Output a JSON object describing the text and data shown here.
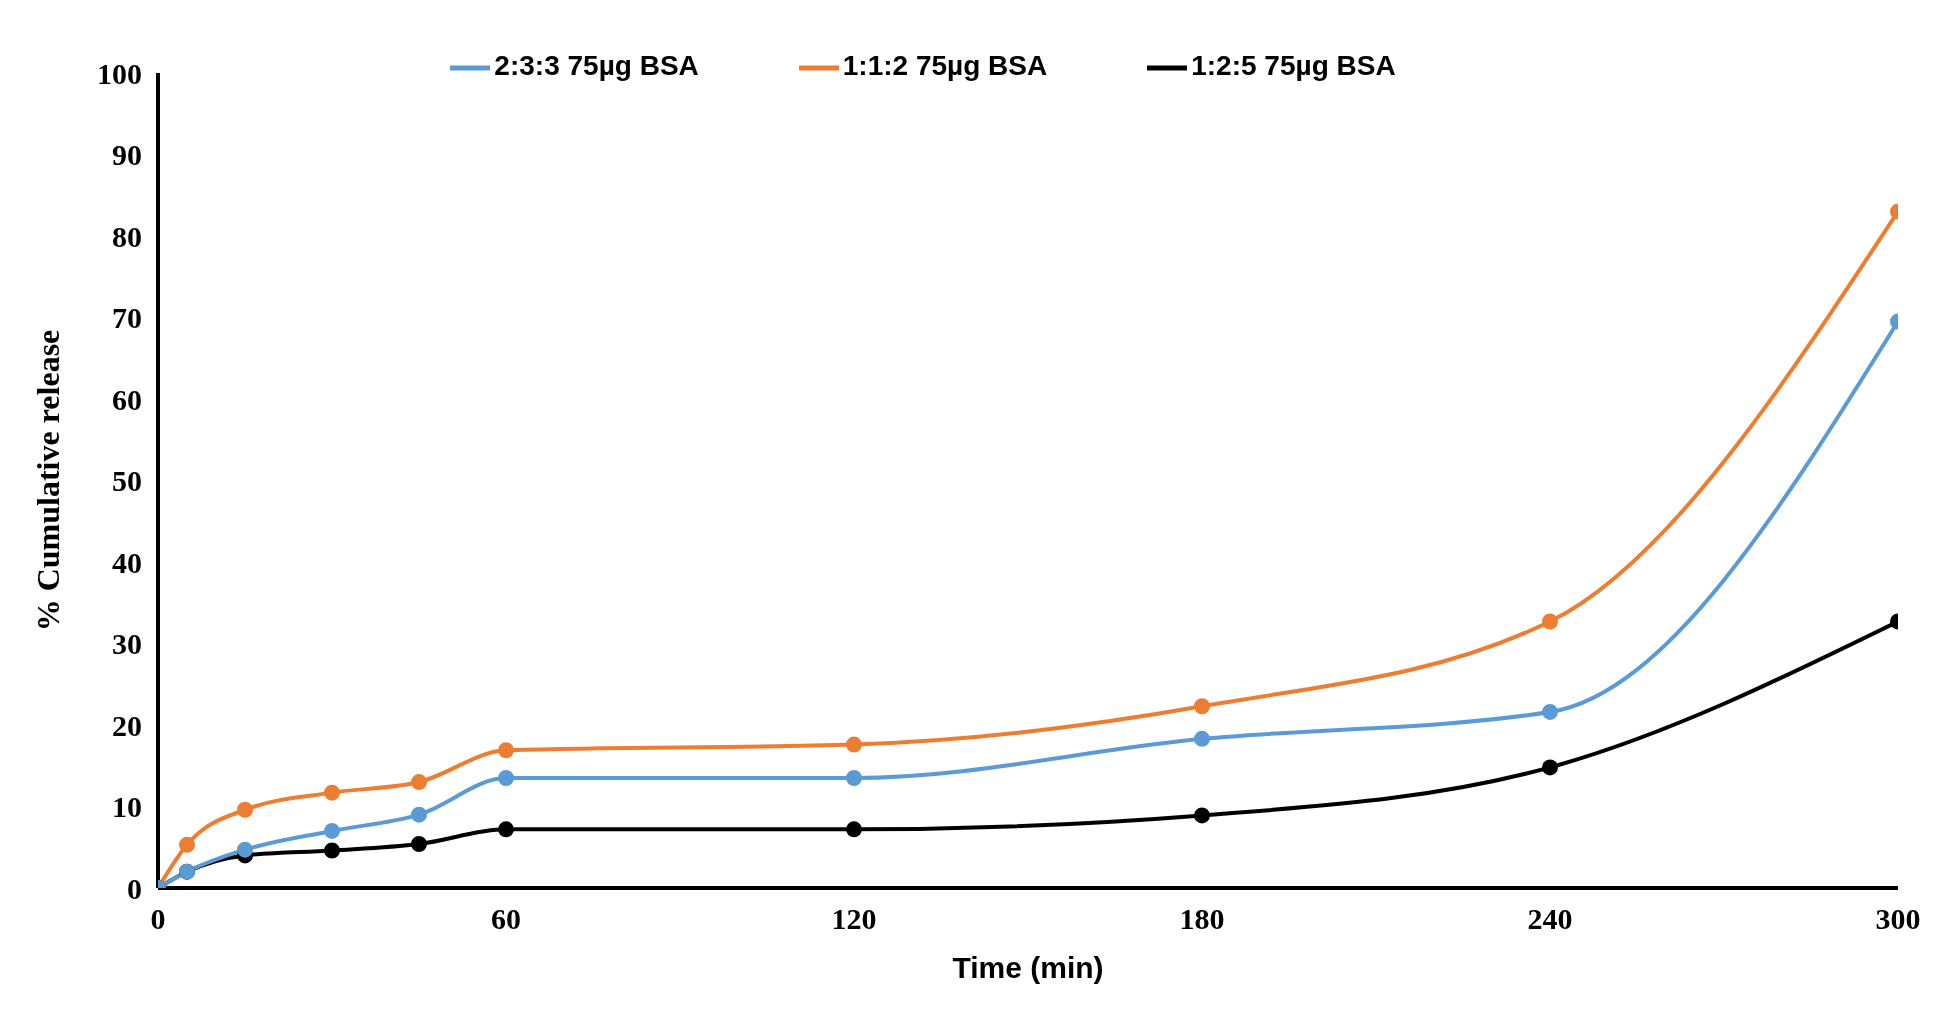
{
  "chart_data": {
    "type": "line",
    "xlabel": "Time (min)",
    "ylabel": "% Cumulative release",
    "x": [
      0,
      5,
      15,
      30,
      45,
      60,
      120,
      180,
      240,
      300
    ],
    "series": [
      {
        "name": "2:3:3 75µg BSA",
        "color": "#5b9bd5",
        "values": [
          0,
          2,
          4.7,
          7,
          9,
          13.5,
          13.5,
          18.3,
          21.6,
          69.5
        ]
      },
      {
        "name": "1:1:2 75µg BSA",
        "color": "#ed7d31",
        "values": [
          0,
          5.3,
          9.6,
          11.7,
          13,
          16.9,
          17.6,
          22.3,
          32.7,
          83
        ]
      },
      {
        "name": "1:2:5 75µg BSA",
        "color": "#000000",
        "values": [
          0,
          2,
          4,
          4.6,
          5.4,
          7.2,
          7.2,
          8.9,
          14.8,
          32.7
        ]
      }
    ],
    "xlim": [
      0,
      300
    ],
    "xticks": [
      0,
      60,
      120,
      180,
      240,
      300
    ],
    "ylim": [
      0,
      100
    ],
    "yticks": [
      0,
      10,
      20,
      30,
      40,
      50,
      60,
      70,
      80,
      90,
      100
    ],
    "grid": false,
    "legend": "top",
    "marker": "circle",
    "line_style": "solid"
  }
}
